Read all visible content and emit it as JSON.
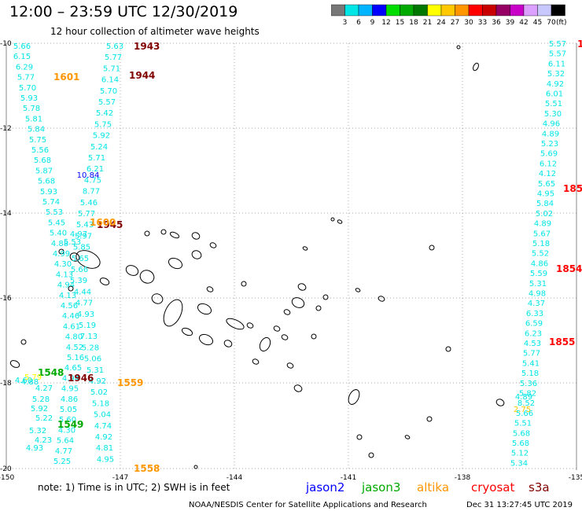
{
  "header": {
    "title": "12:00 – 23:59 UTC 12/30/2019",
    "subtitle": "12 hour collection of altimeter wave heights"
  },
  "colorbar": {
    "labels": [
      "3",
      "6",
      "9",
      "12",
      "15",
      "18",
      "21",
      "24",
      "27",
      "30",
      "33",
      "36",
      "39",
      "42",
      "45",
      "70"
    ],
    "unit": "(ft)",
    "colors": [
      "#777777",
      "#00e5e5",
      "#00b4ff",
      "#0000ff",
      "#00dd00",
      "#00aa00",
      "#007700",
      "#ffff00",
      "#ffc800",
      "#ff9600",
      "#ff0000",
      "#c80000",
      "#960064",
      "#c800c8",
      "#dca0ff",
      "#c8c8ff",
      "#000000"
    ]
  },
  "map": {
    "lat_ticks": [
      "-10",
      "-12",
      "-14",
      "-16",
      "-18",
      "-20"
    ],
    "lon_ticks": [
      "-150",
      "-147",
      "-144",
      "-141",
      "-138",
      "-135"
    ],
    "grid_color": "#888888"
  },
  "tracks": [
    {
      "color": "#00e5e5",
      "values": [
        "5.66",
        "6.15",
        "6.29",
        "5.77",
        "5.70",
        "5.93",
        "5.78",
        "5.81",
        "5.84",
        "5.75",
        "5.56",
        "5.68",
        "5.87",
        "5.68",
        "5.93",
        "5.74",
        "5.53",
        "5.45",
        "5.40",
        "4.88",
        "4.99",
        "4.30",
        "4.13",
        "4.94",
        "4.13",
        "4.56",
        "4.46",
        "4.61",
        "4.80",
        "4.52",
        "5.16",
        "4.65",
        "4.94",
        "4.95",
        "4.86",
        "5.05",
        "5.60",
        "4.30",
        "5.64",
        "4.77",
        "5.25"
      ]
    },
    {
      "color": "#00e5e5",
      "values": [
        "5.63",
        "5.77",
        "5.71",
        "6.14",
        "5.70",
        "5.57",
        "5.42",
        "5.75",
        "5.92",
        "5.24",
        "5.71",
        "6.21",
        "4.75",
        "8.77",
        "5.46",
        "5.77",
        "5.43",
        "5.97",
        "5.85",
        "5.65",
        "5.66",
        "5.39",
        "4.44",
        "4.77",
        "4.93",
        "5.19",
        "7.13",
        "5.28",
        "5.06",
        "5.31",
        "4.92",
        "5.02",
        "5.18",
        "5.04",
        "4.74",
        "4.92",
        "4.81",
        "4.95"
      ]
    },
    {
      "color": "#00e5e5",
      "values": [
        "5.57",
        "5.57",
        "6.11",
        "5.32",
        "4.92",
        "6.01",
        "5.51",
        "5.30",
        "4.96",
        "4.89",
        "5.23",
        "5.69",
        "6.12",
        "4.12",
        "5.65",
        "4.95",
        "5.84",
        "5.02",
        "4.89",
        "5.67",
        "5.18",
        "5.52",
        "4.86",
        "5.59",
        "5.31",
        "4.98",
        "4.37",
        "6.33",
        "6.59",
        "6.23",
        "4.53",
        "5.77",
        "5.41",
        "5.18",
        "5.36",
        "5.82",
        "8.52",
        "5.66",
        "5.51",
        "5.68",
        "5.68",
        "5.12",
        "5.34"
      ]
    }
  ],
  "pass_times": [
    {
      "text": "1943",
      "color": "#800000"
    },
    {
      "text": "1944",
      "color": "#800000"
    },
    {
      "text": "1945",
      "color": "#800000"
    },
    {
      "text": "1946",
      "color": "#800000"
    },
    {
      "text": "1601",
      "color": "#ff9600"
    },
    {
      "text": "1600",
      "color": "#ff9600"
    },
    {
      "text": "1559",
      "color": "#ff9600"
    },
    {
      "text": "1558",
      "color": "#ff9600"
    },
    {
      "text": "1548",
      "color": "#00aa00"
    },
    {
      "text": "1549",
      "color": "#00aa00"
    },
    {
      "text": "185",
      "color": "#ff0000"
    },
    {
      "text": "1854",
      "color": "#ff0000"
    },
    {
      "text": "1855",
      "color": "#ff0000"
    },
    {
      "text": "1",
      "color": "#ff0000"
    }
  ],
  "extra_values": [
    {
      "text": "10.84",
      "color": "#0000ff"
    },
    {
      "text": "4.27",
      "color": "#00e5e5"
    },
    {
      "text": "5.28",
      "color": "#00e5e5"
    },
    {
      "text": "5.92",
      "color": "#00e5e5"
    },
    {
      "text": "4.23",
      "color": "#00e5e5"
    },
    {
      "text": "4.93",
      "color": "#00e5e5"
    },
    {
      "text": "5.32",
      "color": "#00e5e5"
    },
    {
      "text": "5.22",
      "color": "#00e5e5"
    },
    {
      "text": "4.88",
      "color": "#00e5e5"
    },
    {
      "text": "4.60",
      "color": "#00e5e5"
    },
    {
      "text": "4.97",
      "color": "#00e5e5"
    },
    {
      "text": "5.79",
      "color": "#ffff00"
    },
    {
      "text": "2.75",
      "color": "#ffc800"
    },
    {
      "text": "4.89",
      "color": "#00e5e5"
    },
    {
      "text": "5.53",
      "color": "#00e5e5"
    }
  ],
  "footer": {
    "note": "note:  1) Time is in UTC; 2) SWH is in feet",
    "legend": [
      {
        "text": "jason2",
        "color": "#0000ff"
      },
      {
        "text": "jason3",
        "color": "#00aa00"
      },
      {
        "text": "altika",
        "color": "#ff9600"
      },
      {
        "text": "cryosat",
        "color": "#ff0000"
      },
      {
        "text": "s3a",
        "color": "#800000"
      }
    ],
    "credit": "NOAA/NESDIS Center for Satellite Applications and Research",
    "timestamp": "Dec 31 13:27:45 UTC 2019"
  }
}
